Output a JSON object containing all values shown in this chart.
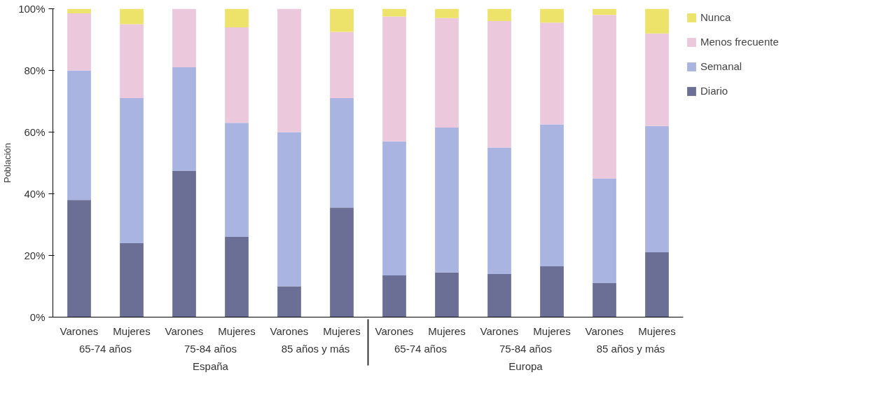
{
  "chart_data": {
    "type": "bar",
    "stacked": true,
    "ylabel": "Población",
    "categories": [
      "Varones",
      "Mujeres",
      "Varones",
      "Mujeres",
      "Varones",
      "Mujeres",
      "Varones",
      "Mujeres",
      "Varones",
      "Mujeres",
      "Varones",
      "Mujeres"
    ],
    "annotations": [
      "65-74 años",
      "75-84 años",
      "85 años y más",
      "65-74 años",
      "75-84 años",
      "85 años y más",
      "España",
      "Europa"
    ],
    "series": [
      {
        "name": "Diario",
        "color": "#6b6f95",
        "values": [
          38,
          24,
          47.5,
          26,
          10,
          35.5,
          13.5,
          14.5,
          14,
          16.5,
          11,
          21
        ]
      },
      {
        "name": "Semanal",
        "color": "#aab4e0",
        "values": [
          42,
          47,
          33.5,
          37,
          50,
          35.5,
          43.5,
          47,
          41,
          46,
          34,
          41
        ]
      },
      {
        "name": "Menos frecuente",
        "color": "#ecc8dc",
        "values": [
          18.5,
          24,
          19,
          31,
          40,
          21.5,
          40.5,
          35.5,
          41,
          33,
          53,
          30
        ]
      },
      {
        "name": "Nunca",
        "color": "#ede36a",
        "values": [
          1.5,
          5,
          0,
          6,
          0,
          7.5,
          2.5,
          3,
          4,
          4.5,
          2,
          8
        ]
      }
    ],
    "ylim": [
      0,
      100
    ],
    "yticks": [
      {
        "value": 0,
        "label": "0%"
      },
      {
        "value": 20,
        "label": "20%"
      },
      {
        "value": 40,
        "label": "40%"
      },
      {
        "value": 60,
        "label": "60%"
      },
      {
        "value": 80,
        "label": "80%"
      },
      {
        "value": 100,
        "label": "100%"
      }
    ],
    "grid": false,
    "legend": "top right"
  }
}
